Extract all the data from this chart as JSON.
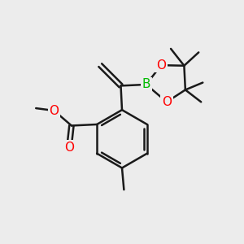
{
  "background_color": "#ececec",
  "bond_color": "#1a1a1a",
  "bond_width": 1.8,
  "atom_colors": {
    "B": "#00bb00",
    "O": "#ff0000"
  },
  "figsize": [
    3.0,
    3.0
  ],
  "dpi": 100
}
